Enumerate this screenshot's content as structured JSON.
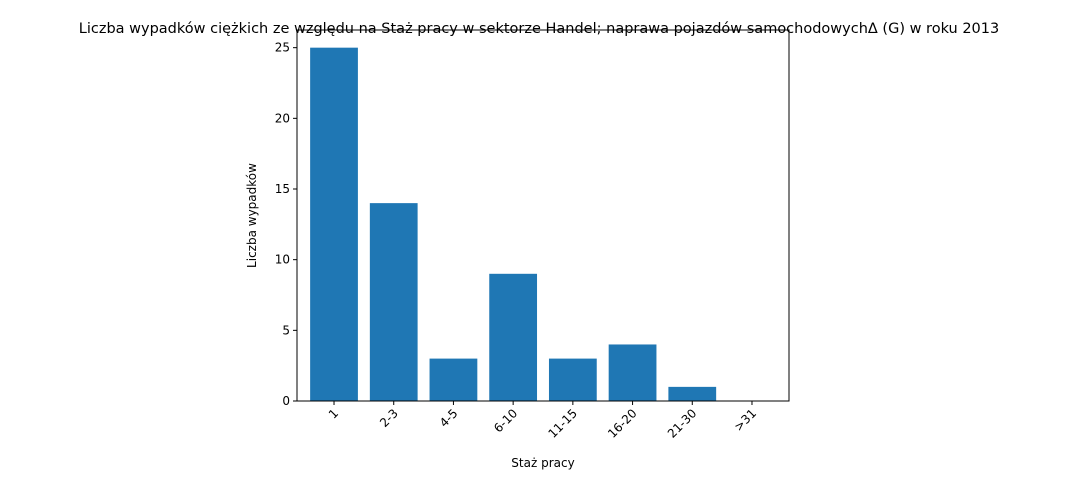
{
  "chart_data": {
    "type": "bar",
    "title": "Liczba wypadków ciężkich ze względu na Staż pracy w sektorze Handel; naprawa pojazdów samochodowychΔ (G) w roku 2013",
    "xlabel": "Staż pracy",
    "ylabel": "Liczba wypadków",
    "categories": [
      "1",
      "2-3",
      "4-5",
      "6-10",
      "11-15",
      "16-20",
      "21-30",
      ">31"
    ],
    "values": [
      25,
      14,
      3,
      9,
      3,
      4,
      1,
      0
    ],
    "ylim": [
      0,
      26.25
    ],
    "yticks": [
      0,
      5,
      10,
      15,
      20,
      25
    ],
    "bar_color": "#1f77b4",
    "grid": false,
    "legend": "none"
  }
}
